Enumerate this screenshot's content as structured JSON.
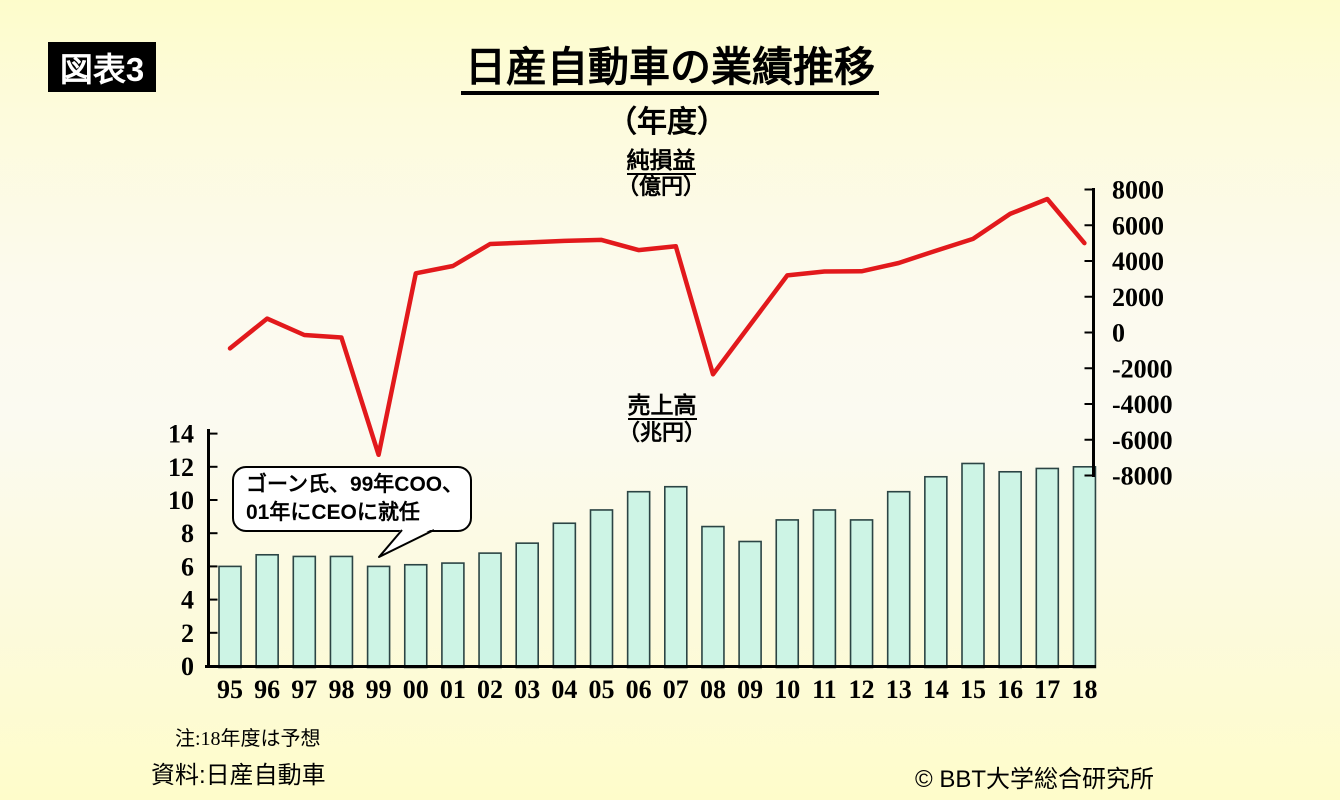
{
  "figure_label": "図表3",
  "title": "日産自動車の業績推移",
  "subtitle": "（年度）",
  "line_series_label": "純損益",
  "line_series_unit": "（億円）",
  "bar_series_label": "売上高",
  "bar_series_unit": "（兆円）",
  "callout": {
    "line1": "ゴーン氏、99年COO、",
    "line2": "01年にCEOに就任"
  },
  "note": "注:18年度は予想",
  "source": "資料:日産自動車",
  "copyright": "© BBT大学総合研究所",
  "colors": {
    "background_top": "#fdfccb",
    "background_middle": "#fbfaf1",
    "background_bottom": "#fefcca",
    "bar_fill": "#cdf4e5",
    "bar_border": "#2b4444",
    "line": "#e2191c",
    "axis": "#000000",
    "badge_bg": "#000000",
    "badge_text": "#ffffff"
  },
  "chart_data": {
    "type": "bar+line",
    "title": "日産自動車の業績推移（年度）",
    "categories": [
      "95",
      "96",
      "97",
      "98",
      "99",
      "00",
      "01",
      "02",
      "03",
      "04",
      "05",
      "06",
      "07",
      "08",
      "09",
      "10",
      "11",
      "12",
      "13",
      "14",
      "15",
      "16",
      "17",
      "18"
    ],
    "series": [
      {
        "name": "売上高（兆円）",
        "type": "bar",
        "axis": "left",
        "values": [
          6.0,
          6.7,
          6.6,
          6.6,
          6.0,
          6.1,
          6.2,
          6.8,
          7.4,
          8.6,
          9.4,
          10.5,
          10.8,
          8.4,
          7.5,
          8.8,
          9.4,
          8.8,
          10.5,
          11.4,
          12.2,
          11.7,
          11.9,
          12.0
        ]
      },
      {
        "name": "純損益（億円）",
        "type": "line",
        "axis": "right",
        "values": [
          -888,
          777,
          -140,
          -277,
          -6844,
          3311,
          3723,
          4952,
          5037,
          5123,
          5181,
          4608,
          4823,
          -2337,
          424,
          3192,
          3411,
          3424,
          3890,
          4576,
          5238,
          6635,
          7469,
          5000
        ]
      }
    ],
    "left_axis": {
      "title": "売上高（兆円）",
      "min": 0,
      "max": 14,
      "tick_values": [
        0,
        2,
        4,
        6,
        8,
        10,
        12,
        14
      ],
      "tick_labels": [
        "0",
        "2",
        "4",
        "6",
        "8",
        "10",
        "12",
        "14"
      ]
    },
    "right_axis": {
      "title": "純損益（億円）",
      "min": -8000,
      "max": 8000,
      "tick_values": [
        -8000,
        -6000,
        -4000,
        -2000,
        0,
        2000,
        4000,
        6000,
        8000
      ],
      "tick_labels": [
        "-8000",
        "-6000",
        "-4000",
        "-2000",
        "0",
        "2000",
        "4000",
        "6000",
        "8000"
      ]
    },
    "grid": false,
    "legend_position": "none",
    "annotations": [
      "ゴーン氏、99年COO、01年にCEOに就任 (points to 99)",
      "注:18年度は予想"
    ]
  }
}
